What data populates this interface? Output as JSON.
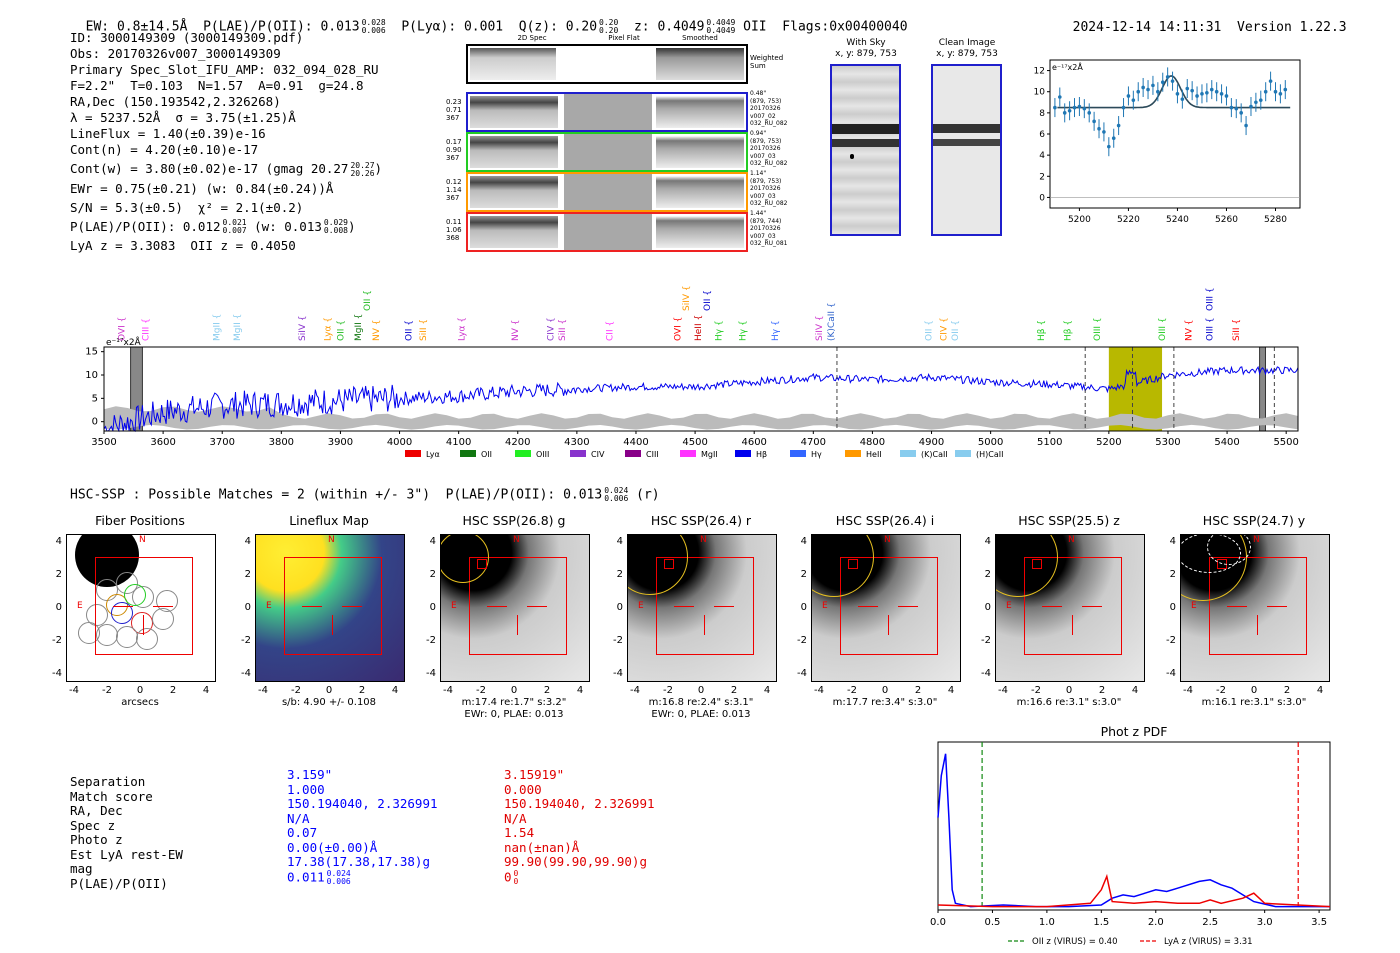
{
  "header": {
    "ew": "EW: 0.8±14.5Å",
    "plae": "P(LAE)/P(OII): 0.013",
    "plae_hi": "0.028",
    "plae_lo": "0.006",
    "plya": "P(Lyα): 0.001",
    "qz": "Q(z): 0.20",
    "qz_hi": "0.20",
    "qz_lo": "0.20",
    "z": "z: 0.4049",
    "z_hi": "0.4049",
    "z_lo": "0.4049",
    "z_line": "OII",
    "flags": "Flags:0x00400040",
    "timestamp": "2024-12-14 14:11:31",
    "version": "Version 1.22.3"
  },
  "info": {
    "id": "ID: 3000149309 (3000149309.pdf)",
    "obs": "Obs: 20170326v007_3000149309",
    "primary": "Primary Spec_Slot_IFU_AMP: 032_094_028_RU",
    "fit": "F=2.2\"  T=0.103  N=1.57  A=0.91  g=24.8",
    "radec": "RA,Dec (150.193542,2.326268)",
    "lambda": "λ = 5237.52Å  σ = 3.75(±1.25)Å",
    "lineflux": "LineFlux = 1.40(±0.39)e-16",
    "contn": "Cont(n) = 4.20(±0.10)e-17",
    "contw": "Cont(w) = 3.80(±0.02)e-17 (gmag 20.27",
    "contw_hi": "20.27",
    "contw_lo": "20.26",
    "ewr": "EWr = 0.75(±0.21) (w: 0.84(±0.24))Å",
    "sn": "S/N = 5.3(±0.5)  χ² = 2.1(±0.2)",
    "plae": "P(LAE)/P(OII): 0.012",
    "plae_hi": "0.021",
    "plae_lo": "0.007",
    "plae_w": "(w: 0.013",
    "plae_w_hi": "0.029",
    "plae_w_lo": "0.008",
    "lyaz": "LyA z = 3.3083  OII z = 0.4050"
  },
  "cutouts": {
    "col_2d": "2D Spec",
    "col_flat": "Pixel Flat",
    "col_smooth": "Smoothed",
    "weighted": "Weighted Sum",
    "rows": [
      {
        "left": [
          "0.23",
          "0.71",
          "367"
        ],
        "right": [
          "0.48\"",
          "(879, 753)",
          "20170326",
          "v007_02",
          "032_RU_082"
        ],
        "color": "#1f1fcc"
      },
      {
        "left": [
          "0.17",
          "0.90",
          "367"
        ],
        "right": [
          "0.94\"",
          "(879, 753)",
          "20170326",
          "v007_03",
          "032_RU_082"
        ],
        "color": "#22cc22"
      },
      {
        "left": [
          "0.12",
          "1.14",
          "367"
        ],
        "right": [
          "1.14\"",
          "(879, 753)",
          "20170326",
          "v007_03",
          "032_RU_082"
        ],
        "color": "#ff9900"
      },
      {
        "left": [
          "0.11",
          "1.06",
          "368"
        ],
        "right": [
          "1.44\"",
          "(879, 744)",
          "20170326",
          "v007_03",
          "032_RU_081"
        ],
        "color": "#ee2222"
      }
    ],
    "with_sky": "With Sky",
    "with_sky_xy": "x, y: 879, 753",
    "clean": "Clean Image",
    "clean_xy": "x, y: 879, 753"
  },
  "chart_data": [
    {
      "type": "scatter",
      "title": "",
      "ylabel": "e⁻¹⁷x2Å",
      "xlim": [
        5188,
        5290
      ],
      "ylim": [
        -1,
        13
      ],
      "xticks": [
        5200,
        5220,
        5240,
        5260,
        5280
      ],
      "yticks": [
        0,
        2,
        4,
        6,
        8,
        10,
        12
      ],
      "x": [
        5190,
        5192,
        5194,
        5196,
        5198,
        5200,
        5202,
        5204,
        5206,
        5208,
        5210,
        5212,
        5214,
        5216,
        5218,
        5220,
        5222,
        5224,
        5226,
        5228,
        5230,
        5232,
        5234,
        5236,
        5238,
        5240,
        5242,
        5244,
        5246,
        5248,
        5250,
        5252,
        5254,
        5256,
        5258,
        5260,
        5262,
        5264,
        5266,
        5268,
        5270,
        5272,
        5274,
        5276,
        5278,
        5280,
        5282,
        5284
      ],
      "y": [
        8.5,
        9.5,
        8.0,
        8.2,
        8.5,
        8.6,
        8.4,
        8.0,
        7.2,
        6.5,
        6.2,
        4.8,
        5.6,
        6.8,
        8.5,
        9.6,
        9.2,
        10.0,
        10.4,
        10.2,
        10.6,
        10.0,
        10.9,
        11.4,
        11.0,
        9.8,
        9.3,
        10.3,
        10.1,
        9.6,
        9.8,
        9.9,
        10.2,
        10.0,
        9.8,
        9.6,
        8.5,
        8.4,
        8.0,
        6.8,
        8.6,
        9.0,
        9.2,
        10.0,
        11.0,
        10.0,
        9.8,
        10.2
      ],
      "fit_base": 8.5,
      "fit_peak": 11.5,
      "fit_center": 5237.5,
      "fit_sigma": 3.75
    },
    {
      "type": "line",
      "xlim": [
        3500,
        5520
      ],
      "ylim": [
        -2,
        16
      ],
      "xticks": [
        3500,
        3600,
        3700,
        3800,
        3900,
        4000,
        4100,
        4200,
        4300,
        4400,
        4500,
        4600,
        4700,
        4800,
        4900,
        5000,
        5100,
        5200,
        5300,
        5400,
        5500
      ],
      "yticks": [
        0,
        5,
        10,
        15
      ],
      "ylabel": "e⁻¹⁷x2Å",
      "trend": [
        [
          3500,
          -1.5
        ],
        [
          3600,
          2
        ],
        [
          3700,
          3.5
        ],
        [
          3800,
          4
        ],
        [
          3900,
          4.5
        ],
        [
          4000,
          5
        ],
        [
          4100,
          5.5
        ],
        [
          4200,
          6.5
        ],
        [
          4300,
          7
        ],
        [
          4400,
          7.5
        ],
        [
          4500,
          7.5
        ],
        [
          4600,
          8.5
        ],
        [
          4700,
          9.5
        ],
        [
          4800,
          9
        ],
        [
          4900,
          9.5
        ],
        [
          5000,
          8.5
        ],
        [
          5100,
          8
        ],
        [
          5150,
          7.5
        ],
        [
          5200,
          7
        ],
        [
          5240,
          8
        ],
        [
          5300,
          10
        ],
        [
          5400,
          11
        ],
        [
          5520,
          11
        ]
      ],
      "emission_lines": [
        {
          "label": "OVI",
          "x": 3530,
          "color": "#cc33cc"
        },
        {
          "label": "CIII",
          "x": 3570,
          "color": "#ff33ff"
        },
        {
          "label": "MgII",
          "x": 3690,
          "color": "#88ccee"
        },
        {
          "label": "MgII",
          "x": 3725,
          "color": "#88ccee"
        },
        {
          "label": "SiIV",
          "x": 3835,
          "color": "#8833cc"
        },
        {
          "label": "Lyα",
          "x": 3878,
          "color": "#ff9900"
        },
        {
          "label": "OII",
          "x": 3900,
          "color": "#22bb22"
        },
        {
          "label": "MgII",
          "x": 3930,
          "color": "#117711"
        },
        {
          "label": "NV",
          "x": 3960,
          "color": "#ff9900"
        },
        {
          "label": "OII",
          "x": 4015,
          "color": "#0000cc"
        },
        {
          "label": "SiII",
          "x": 4040,
          "color": "#ff9900"
        },
        {
          "label": "Lyα",
          "x": 4105,
          "color": "#cc33cc"
        },
        {
          "label": "NV",
          "x": 4195,
          "color": "#cc33cc"
        },
        {
          "label": "CIV",
          "x": 4255,
          "color": "#8833cc"
        },
        {
          "label": "SiII",
          "x": 4275,
          "color": "#cc33cc"
        },
        {
          "label": "CII",
          "x": 4355,
          "color": "#ff33ff"
        },
        {
          "label": "OVI",
          "x": 4470,
          "color": "#ff0000"
        },
        {
          "label": "HeII",
          "x": 4505,
          "color": "#cc0000"
        },
        {
          "label": "Hγ",
          "x": 4540,
          "color": "#22cc22"
        },
        {
          "label": "Hγ",
          "x": 4580,
          "color": "#22cc22"
        },
        {
          "label": "Hγ",
          "x": 4635,
          "color": "#3366ff"
        },
        {
          "label": "SiIV",
          "x": 4710,
          "color": "#cc33cc"
        },
        {
          "label": "(K)CaII",
          "x": 4730,
          "color": "#3366cc"
        },
        {
          "label": "OII",
          "x": 4895,
          "color": "#88ccee"
        },
        {
          "label": "CIV",
          "x": 4920,
          "color": "#ff9900"
        },
        {
          "label": "OII",
          "x": 4940,
          "color": "#88ccee"
        },
        {
          "label": "Hβ",
          "x": 5085,
          "color": "#22cc22"
        },
        {
          "label": "Hβ",
          "x": 5130,
          "color": "#22cc22"
        },
        {
          "label": "OIII",
          "x": 5180,
          "color": "#22cc22"
        },
        {
          "label": "OIII",
          "x": 5290,
          "color": "#22cc22"
        },
        {
          "label": "NV",
          "x": 5335,
          "color": "#ff0000"
        },
        {
          "label": "OIII",
          "x": 5370,
          "color": "#0000cc"
        },
        {
          "label": "SiII",
          "x": 5415,
          "color": "#ff0000"
        }
      ],
      "top_labels": [
        {
          "label": "OII",
          "x": 3945,
          "color": "#22bb22"
        },
        {
          "label": "SiIV",
          "x": 4485,
          "color": "#ff9900"
        },
        {
          "label": "OII",
          "x": 4520,
          "color": "#0000cc"
        },
        {
          "label": "OIII",
          "x": 5370,
          "color": "#0000cc"
        }
      ],
      "highlight": [
        5200,
        5290
      ],
      "dashed": [
        4740,
        5160,
        5240,
        5310,
        5480
      ],
      "hatched": [
        [
          3545,
          3565
        ],
        [
          5455,
          5465
        ]
      ],
      "legend": [
        {
          "label": "Lyα",
          "color": "#ee0000"
        },
        {
          "label": "OII",
          "color": "#117711"
        },
        {
          "label": "OIII",
          "color": "#22ee22"
        },
        {
          "label": "CIV",
          "color": "#8833cc"
        },
        {
          "label": "CIII",
          "color": "#880088"
        },
        {
          "label": "MgII",
          "color": "#ff33ff"
        },
        {
          "label": "Hβ",
          "color": "#0000ee"
        },
        {
          "label": "Hγ",
          "color": "#3366ff"
        },
        {
          "label": "HeII",
          "color": "#ff9900"
        },
        {
          "label": "(K)CaII",
          "color": "#88ccee"
        },
        {
          "label": "(H)CaII",
          "color": "#88ccee"
        }
      ]
    },
    {
      "type": "line",
      "title": "Phot z PDF",
      "xlim": [
        0,
        3.6
      ],
      "xticks": [
        0.0,
        0.5,
        1.0,
        1.5,
        2.0,
        2.5,
        3.0,
        3.5
      ],
      "series": [
        {
          "name": "blue",
          "color": "#0000ff",
          "points": [
            [
              0,
              0.55
            ],
            [
              0.03,
              0.8
            ],
            [
              0.07,
              0.93
            ],
            [
              0.1,
              0.55
            ],
            [
              0.13,
              0.12
            ],
            [
              0.16,
              0.04
            ],
            [
              0.3,
              0.02
            ],
            [
              0.6,
              0.03
            ],
            [
              0.9,
              0.02
            ],
            [
              1.2,
              0.02
            ],
            [
              1.5,
              0.03
            ],
            [
              1.6,
              0.07
            ],
            [
              1.7,
              0.09
            ],
            [
              1.8,
              0.08
            ],
            [
              1.9,
              0.1
            ],
            [
              2.0,
              0.12
            ],
            [
              2.1,
              0.11
            ],
            [
              2.2,
              0.13
            ],
            [
              2.4,
              0.17
            ],
            [
              2.5,
              0.18
            ],
            [
              2.6,
              0.15
            ],
            [
              2.7,
              0.13
            ],
            [
              2.8,
              0.09
            ],
            [
              2.9,
              0.05
            ],
            [
              3.1,
              0.02
            ],
            [
              3.6,
              0.02
            ]
          ]
        },
        {
          "name": "red",
          "color": "#ee0000",
          "points": [
            [
              0,
              0.03
            ],
            [
              0.5,
              0.02
            ],
            [
              1.0,
              0.02
            ],
            [
              1.4,
              0.04
            ],
            [
              1.5,
              0.12
            ],
            [
              1.55,
              0.2
            ],
            [
              1.6,
              0.05
            ],
            [
              1.8,
              0.04
            ],
            [
              2.0,
              0.05
            ],
            [
              2.2,
              0.04
            ],
            [
              2.4,
              0.04
            ],
            [
              2.5,
              0.06
            ],
            [
              2.6,
              0.04
            ],
            [
              2.8,
              0.07
            ],
            [
              2.9,
              0.1
            ],
            [
              3.0,
              0.04
            ],
            [
              3.6,
              0.02
            ]
          ]
        }
      ],
      "markers": [
        {
          "label": "OII z (VIRUS) = 0.40",
          "x": 0.405,
          "color": "#118811"
        },
        {
          "label": "LyA z (VIRUS) = 3.31",
          "x": 3.308,
          "color": "#ee0000"
        }
      ]
    }
  ],
  "hsc": {
    "summary": "HSC-SSP : Possible Matches = 2 (within +/- 3\")  P(LAE)/P(OII): 0.013",
    "summary_hi": "0.024",
    "summary_lo": "0.006",
    "summary_tail": "(r)",
    "panels": [
      {
        "title": "Fiber Positions",
        "cap1": "arcsecs",
        "cap2": ""
      },
      {
        "title": "Lineflux Map",
        "cap1": "s/b: 4.90 +/- 0.108",
        "cap2": ""
      },
      {
        "title": "HSC SSP(26.8) g",
        "cap1": "m:17.4  re:1.7\"  s:3.2\"",
        "cap2": "EWr: 0, PLAE: 0.013"
      },
      {
        "title": "HSC SSP(26.4) r",
        "cap1": "m:16.8  re:2.4\"  s:3.1\"",
        "cap2": "EWr: 0, PLAE: 0.013"
      },
      {
        "title": "HSC SSP(26.4) i",
        "cap1": "m:17.7  re:3.4\"  s:3.0\"",
        "cap2": ""
      },
      {
        "title": "HSC SSP(25.5) z",
        "cap1": "m:16.6  re:3.1\"  s:3.0\"",
        "cap2": ""
      },
      {
        "title": "HSC SSP(24.7) y",
        "cap1": "m:16.1  re:3.1\"  s:3.0\"",
        "cap2": ""
      }
    ],
    "axis_ticks_x": [
      "-4",
      "-2",
      "0",
      "2",
      "4"
    ],
    "axis_ticks_y": [
      "4",
      "2",
      "0",
      "-2",
      "-4"
    ],
    "n_label": "N",
    "e_label": "E"
  },
  "matches": {
    "labels": [
      "Separation",
      "Match score",
      "RA, Dec",
      "Spec z",
      "Photo z",
      "Est LyA rest-EW",
      "mag",
      "P(LAE)/P(OII)"
    ],
    "blue": [
      "3.159\"",
      "1.000",
      "150.194040, 2.326991",
      "N/A",
      "0.07",
      "0.00(±0.00)Å",
      "17.38(17.38,17.38)g",
      "0.011"
    ],
    "blue_plae_hi": "0.024",
    "blue_plae_lo": "0.006",
    "red": [
      "3.15919\"",
      "0.000",
      "150.194040, 2.326991",
      "N/A",
      "1.54",
      "nan(±nan)Å",
      "99.90(99.90,99.90)g",
      "0"
    ],
    "red_plae_hi": "0",
    "red_plae_lo": "0"
  }
}
